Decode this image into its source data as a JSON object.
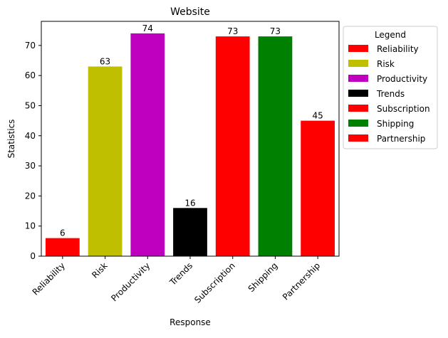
{
  "chart_data": {
    "type": "bar",
    "title": "Website",
    "xlabel": "Response",
    "ylabel": "Statistics",
    "categories": [
      "Reliability",
      "Risk",
      "Productivity",
      "Trends",
      "Subscription",
      "Shipping",
      "Partnership"
    ],
    "values": [
      6,
      63,
      74,
      16,
      73,
      73,
      45
    ],
    "colors": [
      "#ff0000",
      "#bfbf00",
      "#bf00bf",
      "#000000",
      "#ff0000",
      "#008000",
      "#ff0000"
    ],
    "ylim": [
      0,
      78
    ],
    "yticks": [
      0,
      10,
      20,
      30,
      40,
      50,
      60,
      70
    ],
    "grid": false,
    "legend": {
      "title": "Legend",
      "placement": "outside-right-top",
      "entries": [
        "Reliability",
        "Risk",
        "Productivity",
        "Trends",
        "Subscription",
        "Shipping",
        "Partnership"
      ]
    }
  }
}
